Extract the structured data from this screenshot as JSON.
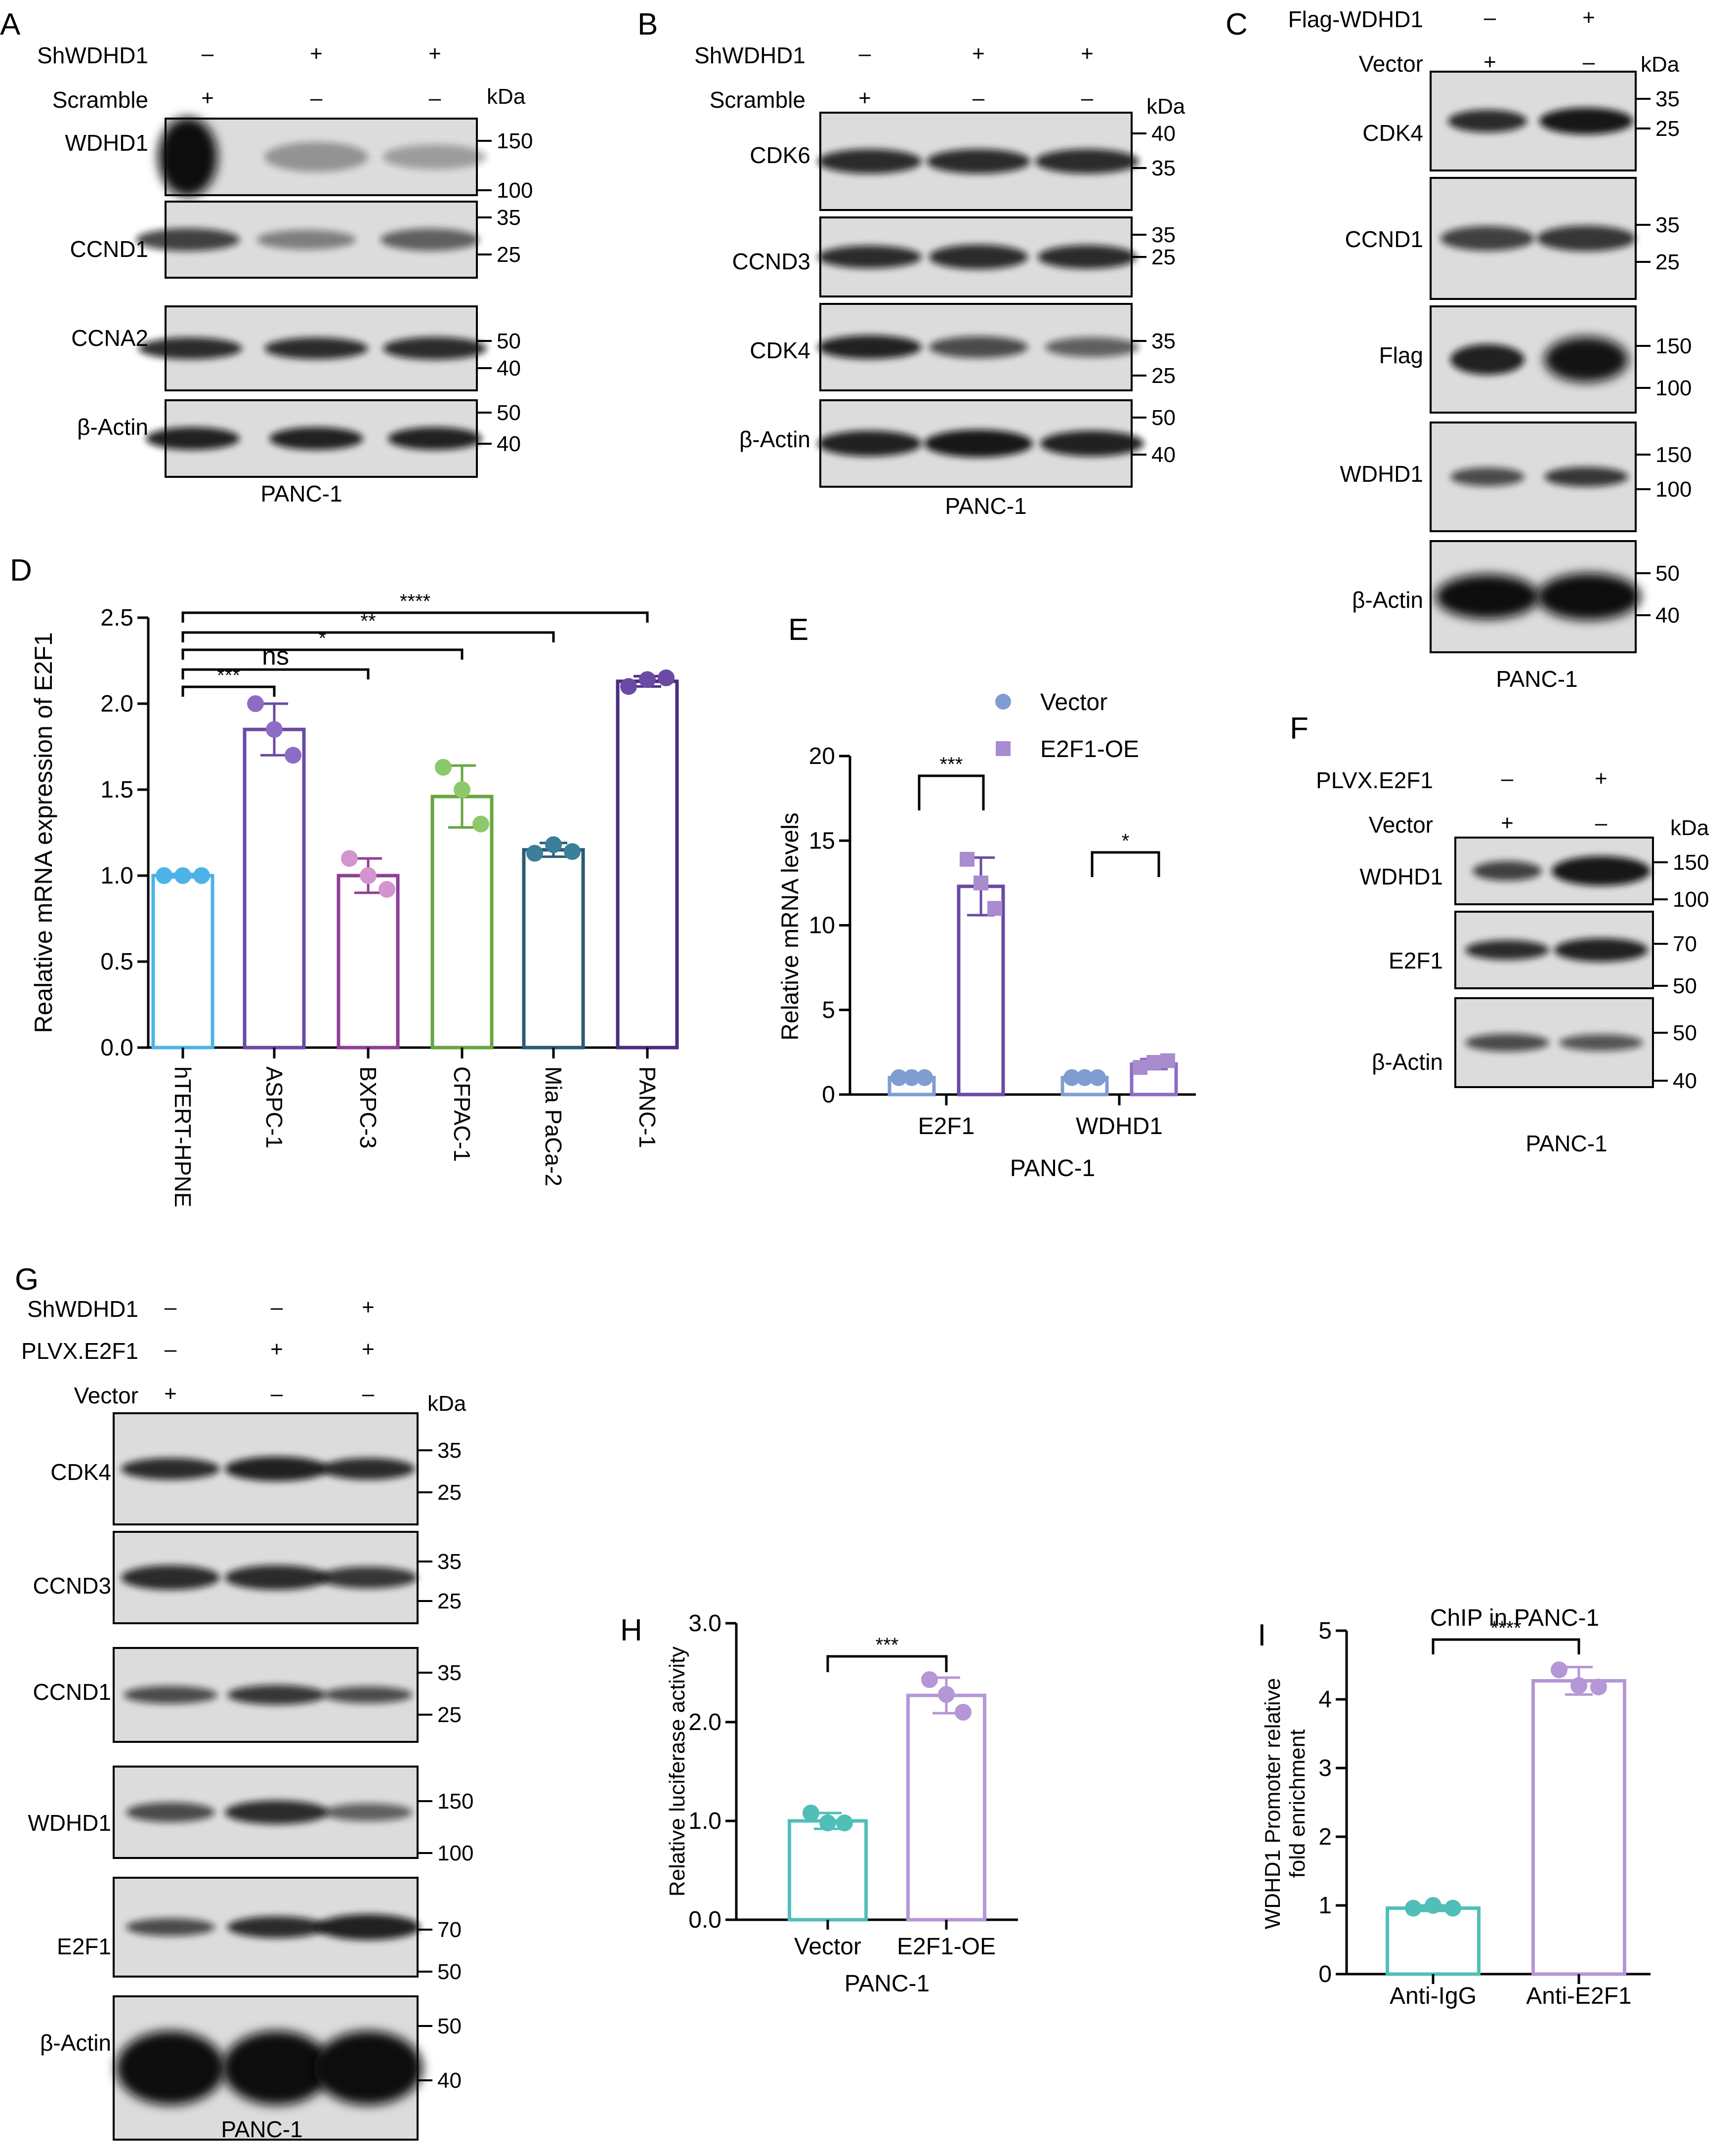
{
  "colors": {
    "hTERT-HPNE": "#4db3e6",
    "ASPC-1": "#6a4aa5",
    "BXPC-3": "#8e3f96",
    "CFPAC-1": "#66a63f",
    "Mia PaCa-2": "#2b5c73",
    "PANC-1": "#4a2d80",
    "vector_blue": "#7f9dd0",
    "e2f1_purple": "#a98bd0",
    "teal": "#4fbfb8",
    "lilac": "#b596d6",
    "blot_dark": "#111111"
  },
  "panelA": {
    "letter": "A",
    "rows": [
      {
        "name": "ShWDHD1",
        "marks": [
          "–",
          "+",
          "+"
        ]
      },
      {
        "name": "Scramble",
        "marks": [
          "+",
          "–",
          "–"
        ]
      }
    ],
    "kda": "kDa",
    "blots": [
      {
        "label": "WDHD1",
        "markers": [
          "150",
          "100"
        ]
      },
      {
        "label": "CCND1",
        "markers": [
          "35",
          "25"
        ]
      },
      {
        "label": "CCNA2",
        "markers": [
          "50",
          "40"
        ]
      },
      {
        "label": "β-Actin",
        "markers": [
          "50",
          "40"
        ]
      }
    ],
    "cell_line": "PANC-1"
  },
  "panelB": {
    "letter": "B",
    "rows": [
      {
        "name": "ShWDHD1",
        "marks": [
          "–",
          "+",
          "+"
        ]
      },
      {
        "name": "Scramble",
        "marks": [
          "+",
          "–",
          "–"
        ]
      }
    ],
    "kda": "kDa",
    "blots": [
      {
        "label": "CDK6",
        "markers": [
          "40",
          "35"
        ]
      },
      {
        "label": "CCND3",
        "markers": [
          "35",
          "25"
        ]
      },
      {
        "label": "CDK4",
        "markers": [
          "35",
          "25"
        ]
      },
      {
        "label": "β-Actin",
        "markers": [
          "50",
          "40"
        ]
      }
    ],
    "cell_line": "PANC-1"
  },
  "panelC": {
    "letter": "C",
    "rows": [
      {
        "name": "Flag-WDHD1",
        "marks": [
          "–",
          "+"
        ]
      },
      {
        "name": "Vector",
        "marks": [
          "+",
          "–"
        ]
      }
    ],
    "kda": "kDa",
    "blots": [
      {
        "label": "CDK4",
        "markers": [
          "35",
          "25"
        ]
      },
      {
        "label": "CCND1",
        "markers": [
          "35",
          "25"
        ]
      },
      {
        "label": "Flag",
        "markers": [
          "150",
          "100"
        ]
      },
      {
        "label": "WDHD1",
        "markers": [
          "150",
          "100"
        ]
      },
      {
        "label": "β-Actin",
        "markers": [
          "50",
          "40"
        ]
      }
    ],
    "cell_line": "PANC-1"
  },
  "panelD": {
    "letter": "D",
    "ylabel": "Realative mRNA expression of E2F1",
    "yticks": [
      "0.0",
      "0.5",
      "1.0",
      "1.5",
      "2.0",
      "2.5"
    ],
    "sig": [
      "***",
      "ns",
      "*",
      "**",
      "****"
    ]
  },
  "panelE": {
    "letter": "E",
    "legend": [
      "Vector",
      "E2F1-OE"
    ],
    "ylabel": "Relative mRNA levels",
    "yticks": [
      "0",
      "5",
      "10",
      "15",
      "20"
    ],
    "xlabel": "PANC-1",
    "sig": [
      "***",
      "*"
    ]
  },
  "panelF": {
    "letter": "F",
    "rows": [
      {
        "name": "PLVX.E2F1",
        "marks": [
          "–",
          "+"
        ]
      },
      {
        "name": "Vector",
        "marks": [
          "+",
          "–"
        ]
      }
    ],
    "kda": "kDa",
    "blots": [
      {
        "label": "WDHD1",
        "markers": [
          "150",
          "100"
        ]
      },
      {
        "label": "E2F1",
        "markers": [
          "70",
          "50"
        ]
      },
      {
        "label": "β-Actin",
        "markers": [
          "50",
          "40"
        ]
      }
    ],
    "cell_line": "PANC-1"
  },
  "panelG": {
    "letter": "G",
    "rows": [
      {
        "name": "ShWDHD1",
        "marks": [
          "–",
          "–",
          "+"
        ]
      },
      {
        "name": "PLVX.E2F1",
        "marks": [
          "–",
          "+",
          "+"
        ]
      },
      {
        "name": "Vector",
        "marks": [
          "+",
          "–",
          "–"
        ]
      }
    ],
    "kda": "kDa",
    "blots": [
      {
        "label": "CDK4",
        "markers": [
          "35",
          "25"
        ]
      },
      {
        "label": "CCND3",
        "markers": [
          "35",
          "25"
        ]
      },
      {
        "label": "CCND1",
        "markers": [
          "35",
          "25"
        ]
      },
      {
        "label": "WDHD1",
        "markers": [
          "150",
          "100"
        ]
      },
      {
        "label": "E2F1",
        "markers": [
          "70",
          "50"
        ]
      },
      {
        "label": "β-Actin",
        "markers": [
          "50",
          "40"
        ]
      }
    ],
    "cell_line": "PANC-1"
  },
  "panelH": {
    "letter": "H",
    "ylabel": "Relative luciferase activity",
    "yticks": [
      "0.0",
      "1.0",
      "2.0",
      "3.0"
    ],
    "xlabel": "PANC-1",
    "sig": "***"
  },
  "panelI": {
    "letter": "I",
    "title": "ChIP in PANC-1",
    "ylabel1": "WDHD1 Promoter relative",
    "ylabel2": "fold enrichment",
    "yticks": [
      "0",
      "1",
      "2",
      "3",
      "4",
      "5"
    ],
    "sig": "****"
  },
  "chart_data": [
    {
      "panel": "D",
      "type": "bar",
      "ylabel": "Realative mRNA expression of E2F1",
      "ylim": [
        0,
        2.5
      ],
      "categories": [
        "hTERT-HPNE",
        "ASPC-1",
        "BXPC-3",
        "CFPAC-1",
        "Mia PaCa-2",
        "PANC-1"
      ],
      "values": [
        1.0,
        1.85,
        1.0,
        1.46,
        1.15,
        2.13
      ],
      "errors": [
        0.01,
        0.15,
        0.1,
        0.18,
        0.04,
        0.03
      ],
      "points": [
        [
          1.0,
          1.0,
          1.0
        ],
        [
          2.0,
          1.85,
          1.7
        ],
        [
          1.1,
          1.0,
          0.92
        ],
        [
          1.63,
          1.5,
          1.3
        ],
        [
          1.13,
          1.18,
          1.14
        ],
        [
          2.1,
          2.14,
          2.15
        ]
      ],
      "comparisons": [
        [
          "hTERT-HPNE",
          "ASPC-1",
          "***"
        ],
        [
          "hTERT-HPNE",
          "BXPC-3",
          "ns"
        ],
        [
          "hTERT-HPNE",
          "CFPAC-1",
          "*"
        ],
        [
          "hTERT-HPNE",
          "Mia PaCa-2",
          "**"
        ],
        [
          "hTERT-HPNE",
          "PANC-1",
          "****"
        ]
      ]
    },
    {
      "panel": "E",
      "type": "bar",
      "xlabel": "PANC-1",
      "ylabel": "Relative mRNA levels",
      "ylim": [
        0,
        20
      ],
      "categories": [
        "E2F1",
        "WDHD1"
      ],
      "series": [
        {
          "name": "Vector",
          "values": [
            1.0,
            1.0
          ],
          "errors": [
            0.1,
            0.1
          ],
          "points": [
            [
              1.0,
              1.0,
              1.0
            ],
            [
              1.0,
              1.0,
              1.0
            ]
          ]
        },
        {
          "name": "E2F1-OE",
          "values": [
            12.3,
            1.8
          ],
          "errors": [
            1.7,
            0.3
          ],
          "points": [
            [
              13.9,
              12.5,
              11.0
            ],
            [
              1.6,
              1.9,
              2.0
            ]
          ]
        }
      ],
      "comparisons": [
        [
          "E2F1",
          "***"
        ],
        [
          "WDHD1",
          "*"
        ]
      ]
    },
    {
      "panel": "H",
      "type": "bar",
      "xlabel": "PANC-1",
      "ylabel": "Relative luciferase activity",
      "ylim": [
        0,
        3.0
      ],
      "categories": [
        "Vector",
        "E2F1-OE"
      ],
      "values": [
        1.0,
        2.27
      ],
      "errors": [
        0.08,
        0.18
      ],
      "points": [
        [
          1.08,
          0.98,
          0.98
        ],
        [
          2.43,
          2.28,
          2.1
        ]
      ],
      "comparisons": [
        [
          "Vector",
          "E2F1-OE",
          "***"
        ]
      ]
    },
    {
      "panel": "I",
      "type": "bar",
      "title": "ChIP in PANC-1",
      "ylabel": "WDHD1 Promoter relative fold enrichment",
      "ylim": [
        0,
        5
      ],
      "categories": [
        "Anti-IgG",
        "Anti-E2F1"
      ],
      "values": [
        0.96,
        4.27
      ],
      "errors": [
        0.04,
        0.2
      ],
      "points": [
        [
          0.96,
          1.0,
          0.96
        ],
        [
          4.43,
          4.2,
          4.18
        ]
      ],
      "comparisons": [
        [
          "Anti-IgG",
          "Anti-E2F1",
          "****"
        ]
      ]
    }
  ]
}
